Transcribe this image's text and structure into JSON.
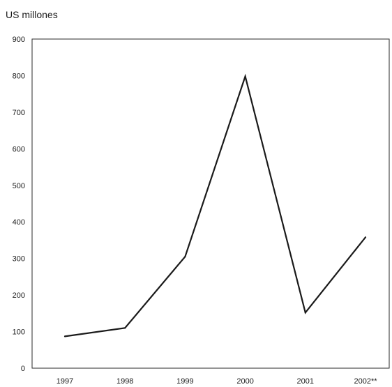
{
  "chart_data": {
    "type": "line",
    "title": "",
    "unit_label": "US millones",
    "xlabel": "",
    "ylabel": "",
    "categories": [
      "1997",
      "1998",
      "1999",
      "2000",
      "2001",
      "2002**"
    ],
    "series": [
      {
        "values": [
          87,
          110,
          305,
          798,
          152,
          358
        ]
      }
    ],
    "ylim": [
      0,
      900
    ],
    "yticks": [
      0,
      100,
      200,
      300,
      400,
      500,
      600,
      700,
      800,
      900
    ],
    "grid": false,
    "legend": "none",
    "line_color": "#1a1a1a"
  }
}
